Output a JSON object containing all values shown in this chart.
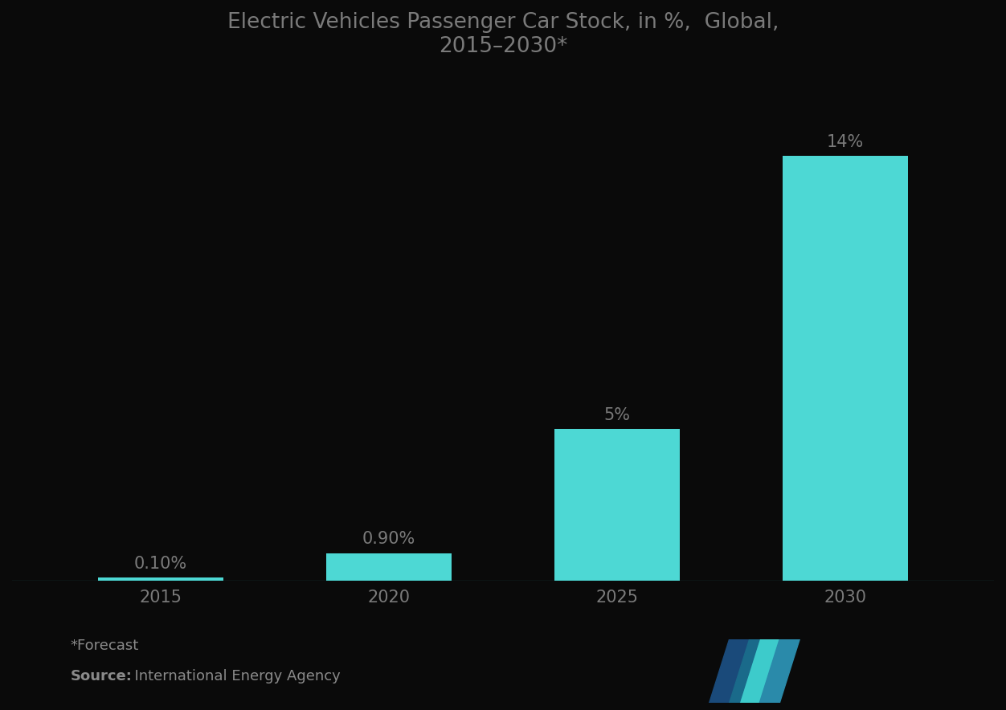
{
  "title": "Electric Vehicles Passenger Car Stock, in %,  Global,\n2015–2030*",
  "categories": [
    "2015",
    "2020",
    "2025",
    "2030"
  ],
  "values": [
    0.1,
    0.9,
    5.0,
    14.0
  ],
  "labels": [
    "0.10%",
    "0.90%",
    "5%",
    "14%"
  ],
  "bar_color": "#4DD8D4",
  "background_color": "#0a0a0a",
  "text_color": "#8a8a8a",
  "title_color": "#7a7a7a",
  "label_color": "#7a7a7a",
  "tick_color": "#7a7a7a",
  "bottom_line_color": "#4DD8D4",
  "footnote": "*Forecast",
  "source_bold": "Source:",
  "source_rest": "  International Energy Agency",
  "ylim": [
    0,
    16.5
  ],
  "bar_width": 0.55,
  "title_fontsize": 19,
  "label_fontsize": 15,
  "tick_fontsize": 15,
  "footnote_fontsize": 13,
  "source_fontsize": 13
}
